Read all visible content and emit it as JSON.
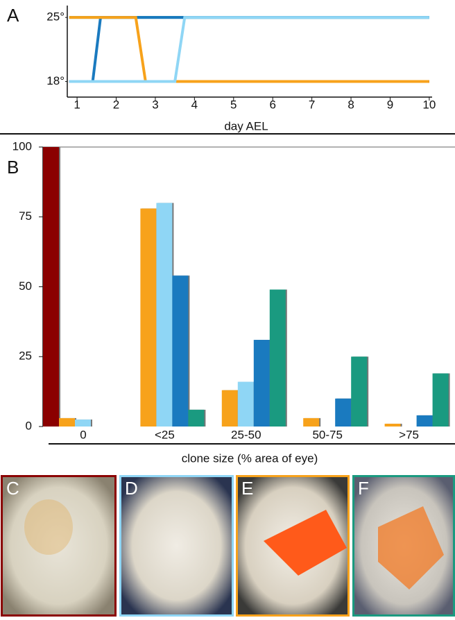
{
  "chart_data": [
    {
      "type": "line",
      "panel": "A",
      "xlabel": "day AEL",
      "xlim": [
        0.75,
        10.25
      ],
      "ylim": [
        16.3,
        26.3
      ],
      "xticks": [
        1,
        2,
        3,
        4,
        5,
        6,
        7,
        8,
        9,
        10
      ],
      "yticks": [
        {
          "value": 18,
          "label": "18°"
        },
        {
          "value": 25,
          "label": "25°"
        }
      ],
      "series": [
        {
          "color": "#8b0000",
          "x": [
            0.8,
            10
          ],
          "values": [
            18,
            18
          ]
        },
        {
          "color": "#1a9a80",
          "x": [
            0.8,
            10
          ],
          "values": [
            25,
            25
          ]
        },
        {
          "color": "#1a7abf",
          "x": [
            0.8,
            1.4,
            1.6,
            10
          ],
          "values": [
            18,
            18,
            25,
            25
          ]
        },
        {
          "color": "#f7a21b",
          "x": [
            0.8,
            2.5,
            2.75,
            10
          ],
          "values": [
            25,
            25,
            18,
            18
          ]
        },
        {
          "color": "#8fd6f5",
          "x": [
            0.8,
            3.5,
            3.75,
            10
          ],
          "values": [
            18,
            18,
            25,
            25
          ]
        }
      ]
    },
    {
      "type": "bar",
      "panel": "B",
      "xlabel": "clone size (% area of eye)",
      "categories": [
        "0",
        "<25",
        "25-50",
        "50-75",
        ">75"
      ],
      "ylim": [
        0,
        100
      ],
      "yticks": [
        0,
        25,
        50,
        75,
        100
      ],
      "series": [
        {
          "color": "#8b0000",
          "values": [
            100,
            0,
            0,
            0,
            0
          ]
        },
        {
          "color": "#f7a21b",
          "values": [
            3,
            78,
            13,
            3,
            1
          ]
        },
        {
          "color": "#8fd6f5",
          "values": [
            2.5,
            80,
            16,
            0,
            0
          ]
        },
        {
          "color": "#1a7abf",
          "values": [
            0,
            54,
            31,
            10,
            4
          ]
        },
        {
          "color": "#1a9a80",
          "values": [
            0,
            6,
            49,
            25,
            19
          ]
        }
      ]
    }
  ],
  "images": [
    {
      "label": "C",
      "border": "#8b0000"
    },
    {
      "label": "D",
      "border": "#8fd6f5"
    },
    {
      "label": "E",
      "border": "#f7a21b"
    },
    {
      "label": "F",
      "border": "#1a9a80"
    }
  ]
}
